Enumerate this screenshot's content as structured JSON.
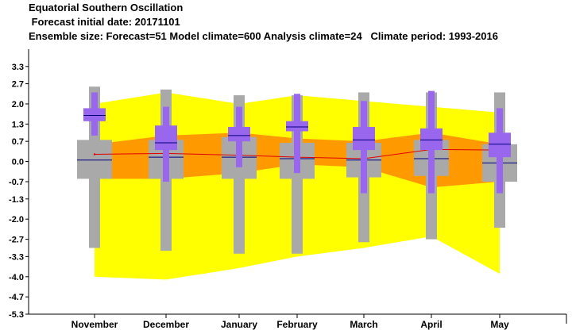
{
  "header": {
    "title": "Equatorial Southern Oscillation",
    "line2": " Forecast initial date: 20171101",
    "line3": "Ensemble size: Forecast=51 Model climate=600 Analysis climate=24   Climate period: 1993-2016"
  },
  "colors": {
    "climate_outer": "#ffff00",
    "climate_inner": "#ff9900",
    "climate_box": "#a9a9a9",
    "forecast_box": "#9966ee",
    "analysis_line": "#e00000",
    "median_line": "#000080"
  },
  "chart_data": {
    "type": "box",
    "categories": [
      "November",
      "December",
      "January",
      "February",
      "March",
      "April",
      "May"
    ],
    "ylim": [
      -5.3,
      3.9
    ],
    "yticks": [
      3.3,
      2.7,
      2.0,
      1.3,
      0.7,
      0.0,
      -0.7,
      -1.3,
      -2.0,
      -2.7,
      -3.3,
      -4.0,
      -4.7,
      -5.3
    ],
    "ytick_labels": [
      "3.3",
      "2.7",
      "2.0",
      "1.3",
      "0.7",
      "0.0",
      "-0.7",
      "-1.3",
      "-2.0",
      "-2.7",
      "-3.3",
      "-4.0",
      "-4.7",
      "-5.3"
    ],
    "climate_band_outer": {
      "upper": [
        2.0,
        2.4,
        2.0,
        2.3,
        2.1,
        1.9,
        1.7
      ],
      "lower": [
        -4.0,
        -4.1,
        -3.7,
        -3.3,
        -3.0,
        -2.6,
        -3.9
      ]
    },
    "climate_band_inner": {
      "upper": [
        0.6,
        0.9,
        1.0,
        0.8,
        0.7,
        1.0,
        0.6
      ],
      "lower": [
        -0.6,
        -0.6,
        -0.4,
        -0.1,
        -0.2,
        -0.9,
        -0.7
      ]
    },
    "climate_boxes": [
      {
        "p_low": -3.0,
        "q1": -0.6,
        "median": 0.05,
        "q3": 0.75,
        "p_high": 2.6
      },
      {
        "p_low": -3.1,
        "q1": -0.6,
        "median": 0.15,
        "q3": 0.75,
        "p_high": 2.5
      },
      {
        "p_low": -3.2,
        "q1": -0.6,
        "median": 0.15,
        "q3": 0.85,
        "p_high": 2.3
      },
      {
        "p_low": -3.2,
        "q1": -0.6,
        "median": 0.1,
        "q3": 0.65,
        "p_high": 2.3
      },
      {
        "p_low": -2.8,
        "q1": -0.55,
        "median": 0.05,
        "q3": 0.65,
        "p_high": 2.4
      },
      {
        "p_low": -2.7,
        "q1": -0.5,
        "median": 0.1,
        "q3": 0.75,
        "p_high": 2.4
      },
      {
        "p_low": -2.3,
        "q1": -0.7,
        "median": -0.05,
        "q3": 0.6,
        "p_high": 2.4
      }
    ],
    "forecast_boxes": [
      {
        "p_low": 0.9,
        "q1": 1.4,
        "median": 1.6,
        "q3": 1.85,
        "p_high": 2.4
      },
      {
        "p_low": -0.7,
        "q1": 0.4,
        "median": 0.65,
        "q3": 1.25,
        "p_high": 1.9
      },
      {
        "p_low": -0.2,
        "q1": 0.7,
        "median": 0.9,
        "q3": 1.2,
        "p_high": 1.9
      },
      {
        "p_low": -0.4,
        "q1": 1.05,
        "median": 1.2,
        "q3": 1.4,
        "p_high": 2.35
      },
      {
        "p_low": -1.1,
        "q1": 0.4,
        "median": 0.75,
        "q3": 1.2,
        "p_high": 2.1
      },
      {
        "p_low": -1.1,
        "q1": 0.4,
        "median": 0.75,
        "q3": 1.15,
        "p_high": 2.45
      },
      {
        "p_low": -1.1,
        "q1": 0.15,
        "median": 0.6,
        "q3": 1.0,
        "p_high": 1.85
      }
    ],
    "analysis_line": [
      0.25,
      0.28,
      0.22,
      0.15,
      0.1,
      0.42,
      0.4
    ]
  }
}
